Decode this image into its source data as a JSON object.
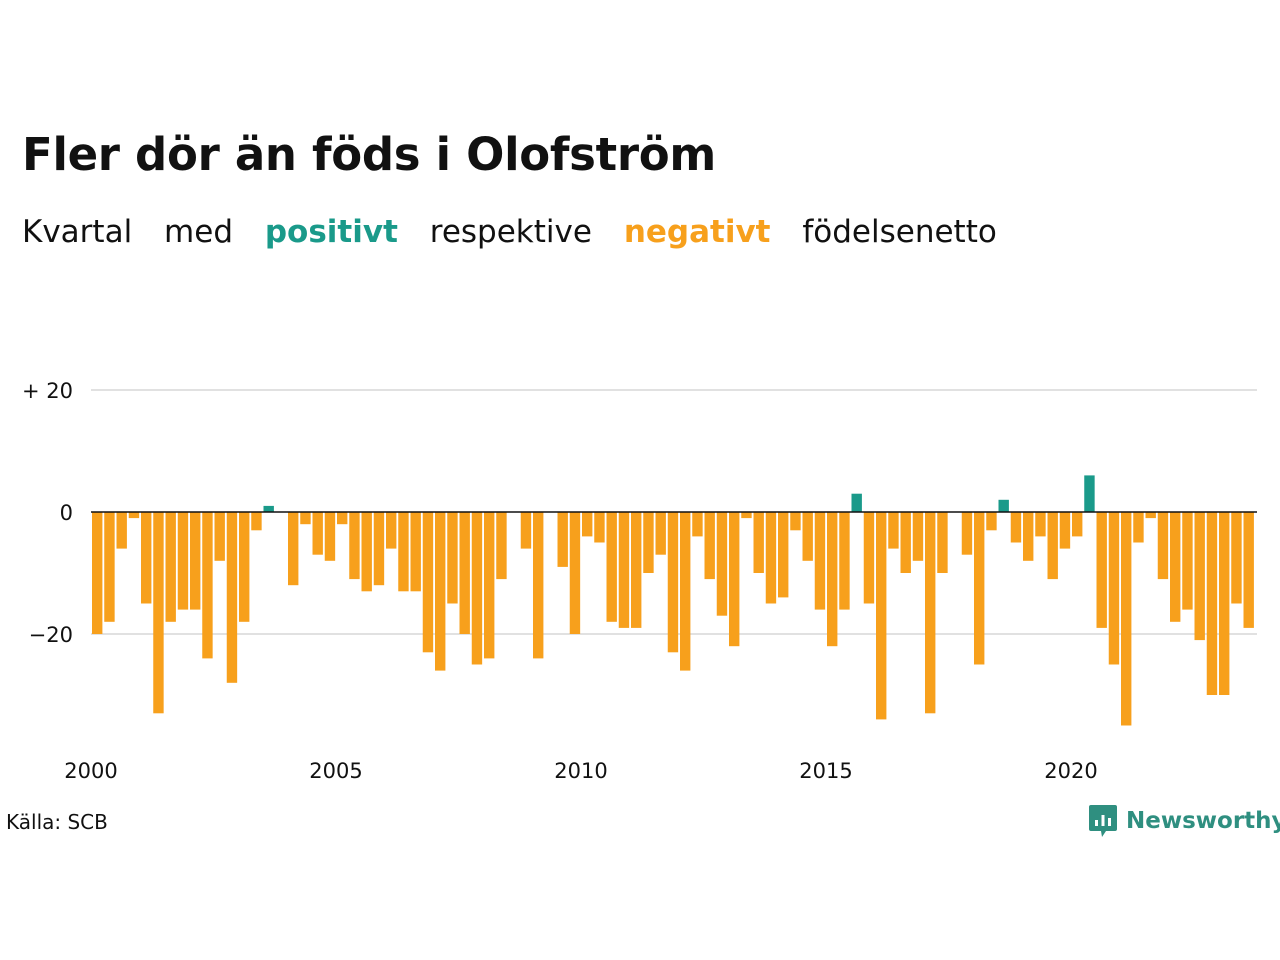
{
  "title": "Fler dör än föds i Olofström",
  "subtitle": {
    "w1": "Kvartal",
    "w2": "med",
    "positive": "positivt",
    "w3": "respektive",
    "negative": "negativt",
    "w4": "födelsenetto"
  },
  "source": "Källa: SCB",
  "brand": "Newsworthy",
  "colors": {
    "positive": "#1a9a8a",
    "negative": "#f7a01c",
    "grid": "#e1e1e1",
    "zero": "#111111",
    "brand": "#2f8f80"
  },
  "chart_data": {
    "type": "bar",
    "x_start_year": 2000,
    "periods_per_year": 4,
    "values": [
      -20,
      -18,
      -6,
      -1,
      -15,
      -33,
      -18,
      -16,
      -16,
      -24,
      -8,
      -28,
      -18,
      -3,
      1,
      0,
      -12,
      -2,
      -7,
      -8,
      -2,
      -11,
      -13,
      -12,
      -6,
      -13,
      -13,
      -23,
      -26,
      -15,
      -20,
      -25,
      -24,
      -11,
      0,
      -6,
      -24,
      0,
      -9,
      -20,
      -4,
      -5,
      -18,
      -19,
      -19,
      -10,
      -7,
      -23,
      -26,
      -4,
      -11,
      -17,
      -22,
      -1,
      -10,
      -15,
      -14,
      -3,
      -8,
      -16,
      -22,
      -16,
      3,
      -15,
      -34,
      -6,
      -10,
      -8,
      -33,
      -10,
      0,
      -7,
      -25,
      -3,
      2,
      -5,
      -8,
      -4,
      -11,
      -6,
      -4,
      6,
      -19,
      -25,
      -35,
      -5,
      -1,
      -11,
      -18,
      -16,
      -21,
      -30,
      -30,
      -15,
      -19
    ],
    "x_ticks": [
      "2000",
      "2005",
      "2010",
      "2015",
      "2020"
    ],
    "y_ticks": [
      {
        "value": 20,
        "label": "+ 20"
      },
      {
        "value": 0,
        "label": "0"
      },
      {
        "value": -20,
        "label": "−20"
      }
    ],
    "ylim": [
      -37,
      22
    ],
    "grid": true,
    "legend": "in-subtitle"
  }
}
